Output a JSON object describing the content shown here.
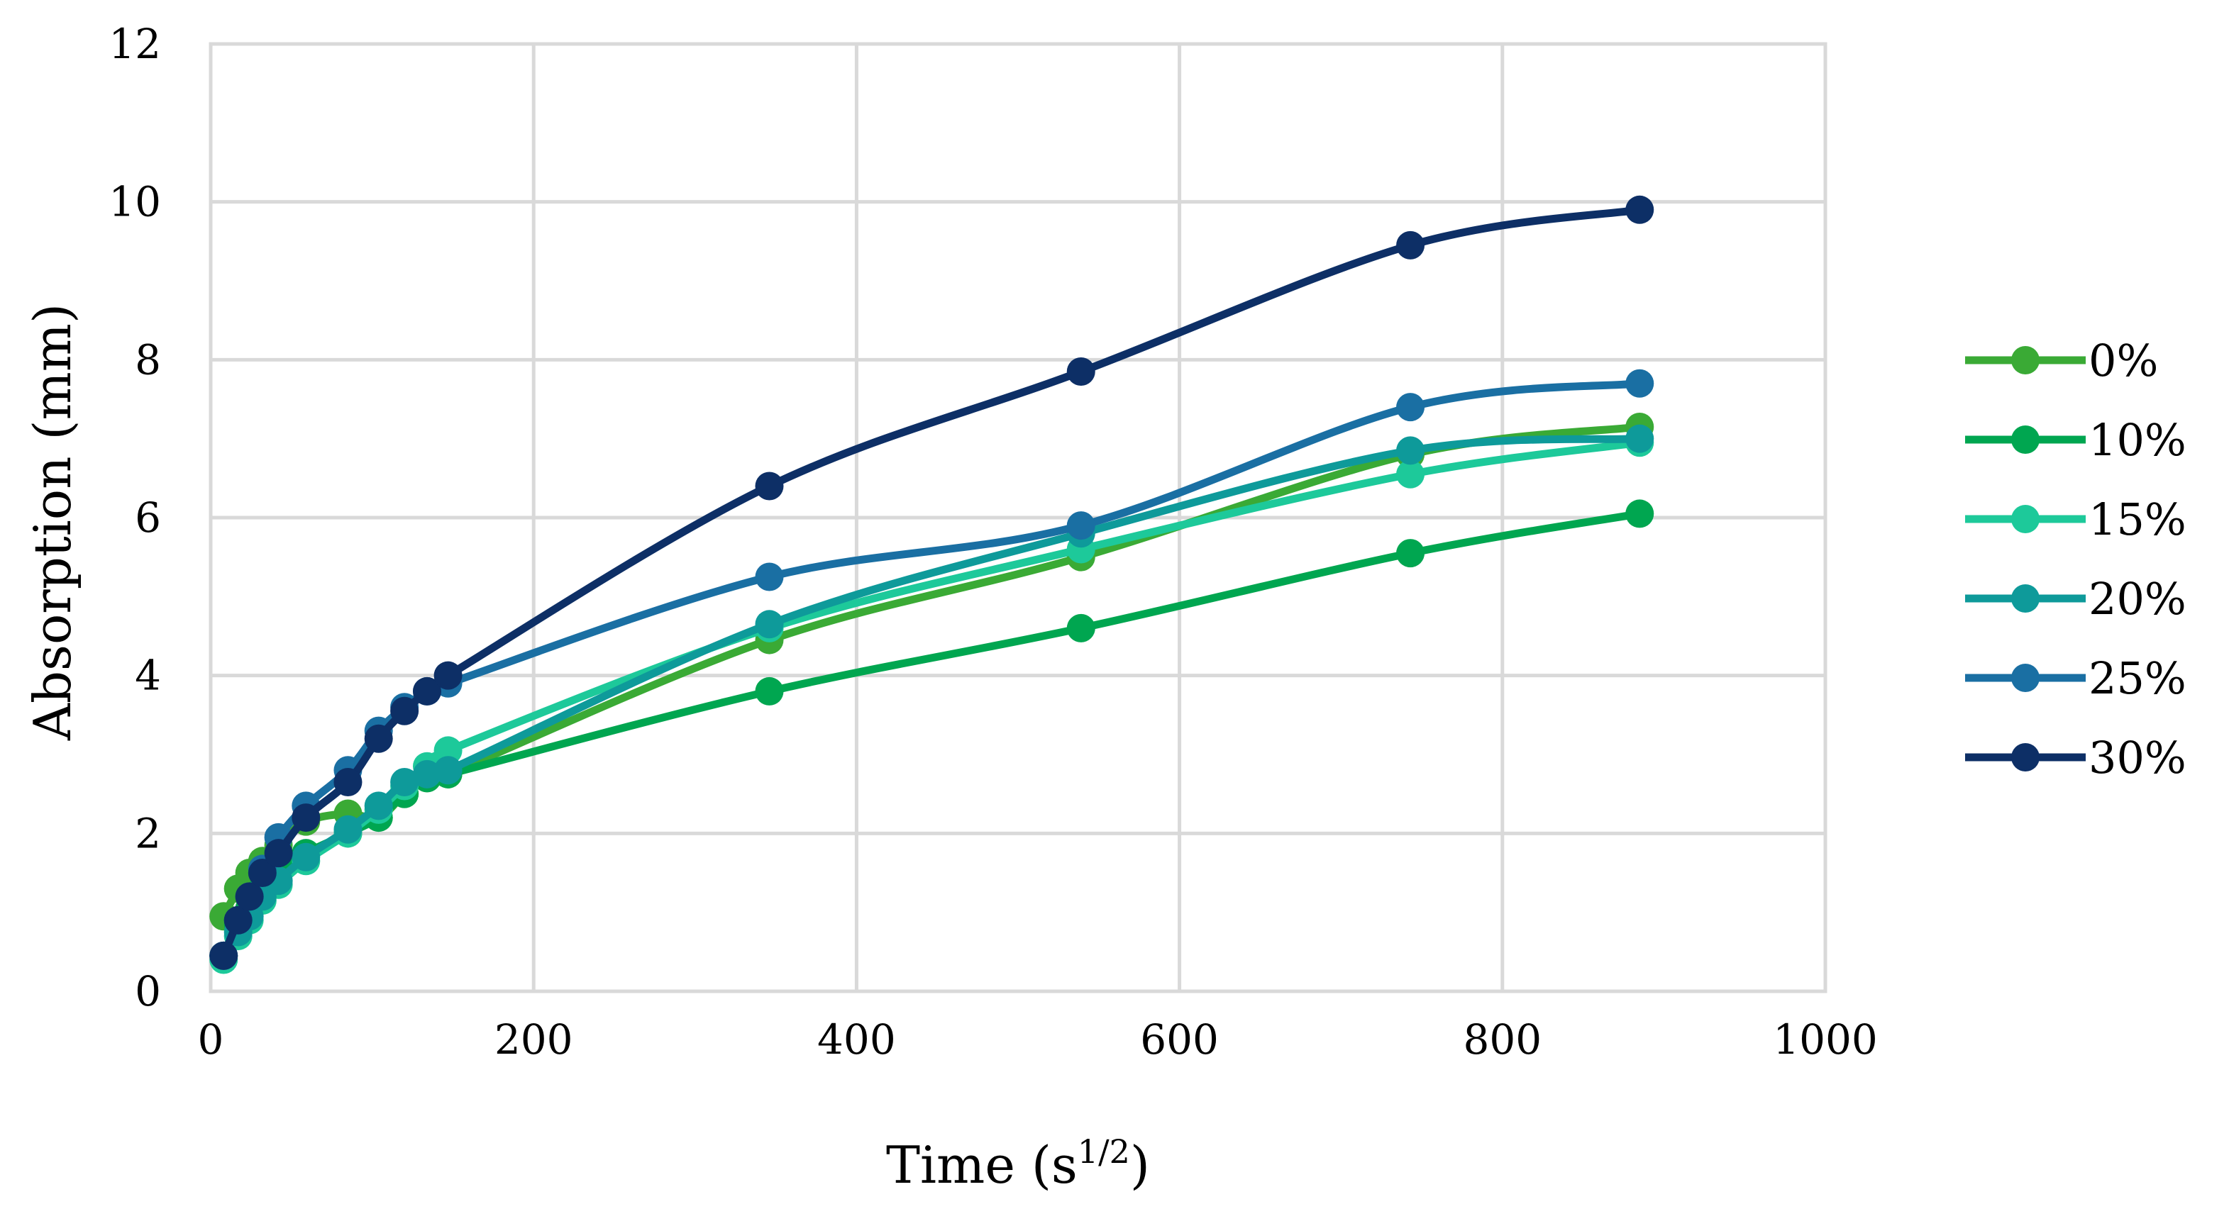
{
  "chart_data": {
    "type": "line",
    "title": "",
    "xlabel": "Time (s",
    "xlabel_sup": "1/2",
    "xlabel_end": ")",
    "ylabel": "Absorption (mm)",
    "xlim": [
      0,
      1000
    ],
    "ylim": [
      0,
      12
    ],
    "x_ticks": [
      0,
      200,
      400,
      600,
      800,
      1000
    ],
    "y_ticks": [
      0,
      2,
      4,
      6,
      8,
      10,
      12
    ],
    "x_tick_labels": [
      "0",
      "200",
      "400",
      "600",
      "800",
      "1000"
    ],
    "y_tick_labels": [
      "0",
      "2",
      "4",
      "6",
      "8",
      "10",
      "12"
    ],
    "grid": true,
    "legend_position": "right",
    "series": [
      {
        "name": "0%",
        "color": "#3aaa35",
        "x": [
          8,
          17,
          24,
          32,
          42,
          59,
          85,
          104,
          120,
          134,
          147,
          346,
          539,
          743,
          885
        ],
        "y": [
          0.95,
          1.3,
          1.5,
          1.65,
          1.85,
          2.15,
          2.25,
          2.2,
          2.5,
          2.7,
          2.75,
          4.45,
          5.5,
          6.8,
          7.15
        ]
      },
      {
        "name": "10%",
        "color": "#00a650",
        "x": [
          8,
          17,
          24,
          32,
          42,
          59,
          85,
          104,
          120,
          134,
          147,
          346,
          539,
          743,
          885
        ],
        "y": [
          0.45,
          0.85,
          1.05,
          1.3,
          1.5,
          1.75,
          2.0,
          2.2,
          2.5,
          2.7,
          2.75,
          3.8,
          4.6,
          5.55,
          6.05
        ]
      },
      {
        "name": "15%",
        "color": "#1dc99a",
        "x": [
          8,
          17,
          24,
          32,
          42,
          59,
          85,
          104,
          120,
          134,
          147,
          346,
          539,
          743,
          885
        ],
        "y": [
          0.4,
          0.7,
          0.9,
          1.15,
          1.35,
          1.65,
          2.0,
          2.3,
          2.6,
          2.85,
          3.05,
          4.6,
          5.6,
          6.55,
          6.95
        ]
      },
      {
        "name": "20%",
        "color": "#0e9a9a",
        "x": [
          8,
          17,
          24,
          32,
          42,
          59,
          85,
          104,
          120,
          134,
          147,
          346,
          539,
          743,
          885
        ],
        "y": [
          0.45,
          0.75,
          0.95,
          1.2,
          1.4,
          1.7,
          2.05,
          2.35,
          2.65,
          2.75,
          2.8,
          4.65,
          5.8,
          6.85,
          7.0
        ]
      },
      {
        "name": "25%",
        "color": "#1a6fa3",
        "x": [
          8,
          17,
          24,
          32,
          42,
          59,
          85,
          104,
          120,
          134,
          147,
          346,
          539,
          743,
          885
        ],
        "y": [
          0.45,
          0.9,
          1.2,
          1.55,
          1.95,
          2.35,
          2.8,
          3.3,
          3.6,
          3.8,
          3.9,
          5.25,
          5.9,
          7.4,
          7.7
        ]
      },
      {
        "name": "30%",
        "color": "#0d2f66",
        "x": [
          8,
          17,
          24,
          32,
          42,
          59,
          85,
          104,
          120,
          134,
          147,
          346,
          539,
          743,
          885
        ],
        "y": [
          0.45,
          0.9,
          1.2,
          1.5,
          1.75,
          2.2,
          2.65,
          3.2,
          3.55,
          3.8,
          4.0,
          6.4,
          7.85,
          9.45,
          9.9
        ]
      }
    ]
  }
}
